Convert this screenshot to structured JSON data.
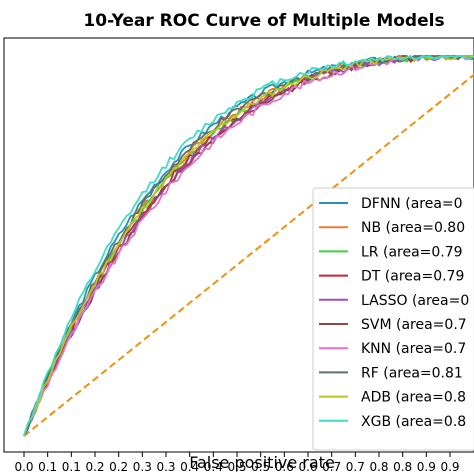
{
  "chart_data": {
    "type": "line",
    "title": "10-Year ROC Curve of Multiple Models",
    "xlabel": "False positive rate",
    "ylabel": "",
    "xlim": [
      -0.02,
      0.96
    ],
    "ylim": [
      0,
      1
    ],
    "x_ticks": [
      "0.0",
      "0.1",
      "0.1",
      "0.2",
      "0.2",
      "0.3",
      "0.3",
      "0.4",
      "0.4",
      "0.5",
      "0.5",
      "0.6",
      "0.6",
      "0.7",
      "0.7",
      "0.8",
      "0.8",
      "0.9",
      "0.9"
    ],
    "x_tick_values": [
      0.0,
      0.05,
      0.1,
      0.15,
      0.2,
      0.25,
      0.3,
      0.35,
      0.4,
      0.45,
      0.5,
      0.55,
      0.6,
      0.65,
      0.7,
      0.75,
      0.8,
      0.85,
      0.9
    ],
    "x_tick_labeled": [
      true,
      false,
      true,
      false,
      true,
      false,
      true,
      false,
      true,
      false,
      true,
      false,
      true,
      false,
      true,
      false,
      true,
      false,
      true
    ],
    "grid": false,
    "legend_placement": "bottom-right",
    "reference_line": {
      "color": "#f0900f",
      "style": "dashed",
      "x": [
        0.0,
        1.0
      ],
      "y": [
        0.0,
        1.0
      ]
    },
    "series": [
      {
        "name": "DFNN",
        "legend_text": "DFNN (area=0",
        "color": "#2a8fb0",
        "k": 3.35
      },
      {
        "name": "NB",
        "legend_text": "NB (area=0.80",
        "color": "#f07830",
        "k": 3.2
      },
      {
        "name": "LR",
        "legend_text": "LR (area=0.79",
        "color": "#3fcf3f",
        "k": 3.1
      },
      {
        "name": "DT",
        "legend_text": "DT (area=0.79",
        "color": "#cc2233",
        "k": 3.05
      },
      {
        "name": "LASSO",
        "legend_text": "LASSO (area=0",
        "color": "#9b4fd0",
        "k": 3.0
      },
      {
        "name": "SVM",
        "legend_text": "SVM (area=0.7",
        "color": "#8b4a40",
        "k": 2.95
      },
      {
        "name": "KNN",
        "legend_text": "KNN (area=0.7",
        "color": "#e86fd0",
        "k": 2.9
      },
      {
        "name": "RF",
        "legend_text": "RF (area=0.81",
        "color": "#5f6f6a",
        "k": 3.25
      },
      {
        "name": "ADB",
        "legend_text": "ADB (area=0.8",
        "color": "#b8c820",
        "k": 3.15
      },
      {
        "name": "XGB",
        "legend_text": "XGB (area=0.8",
        "color": "#3fdcc8",
        "k": 3.5
      }
    ]
  }
}
